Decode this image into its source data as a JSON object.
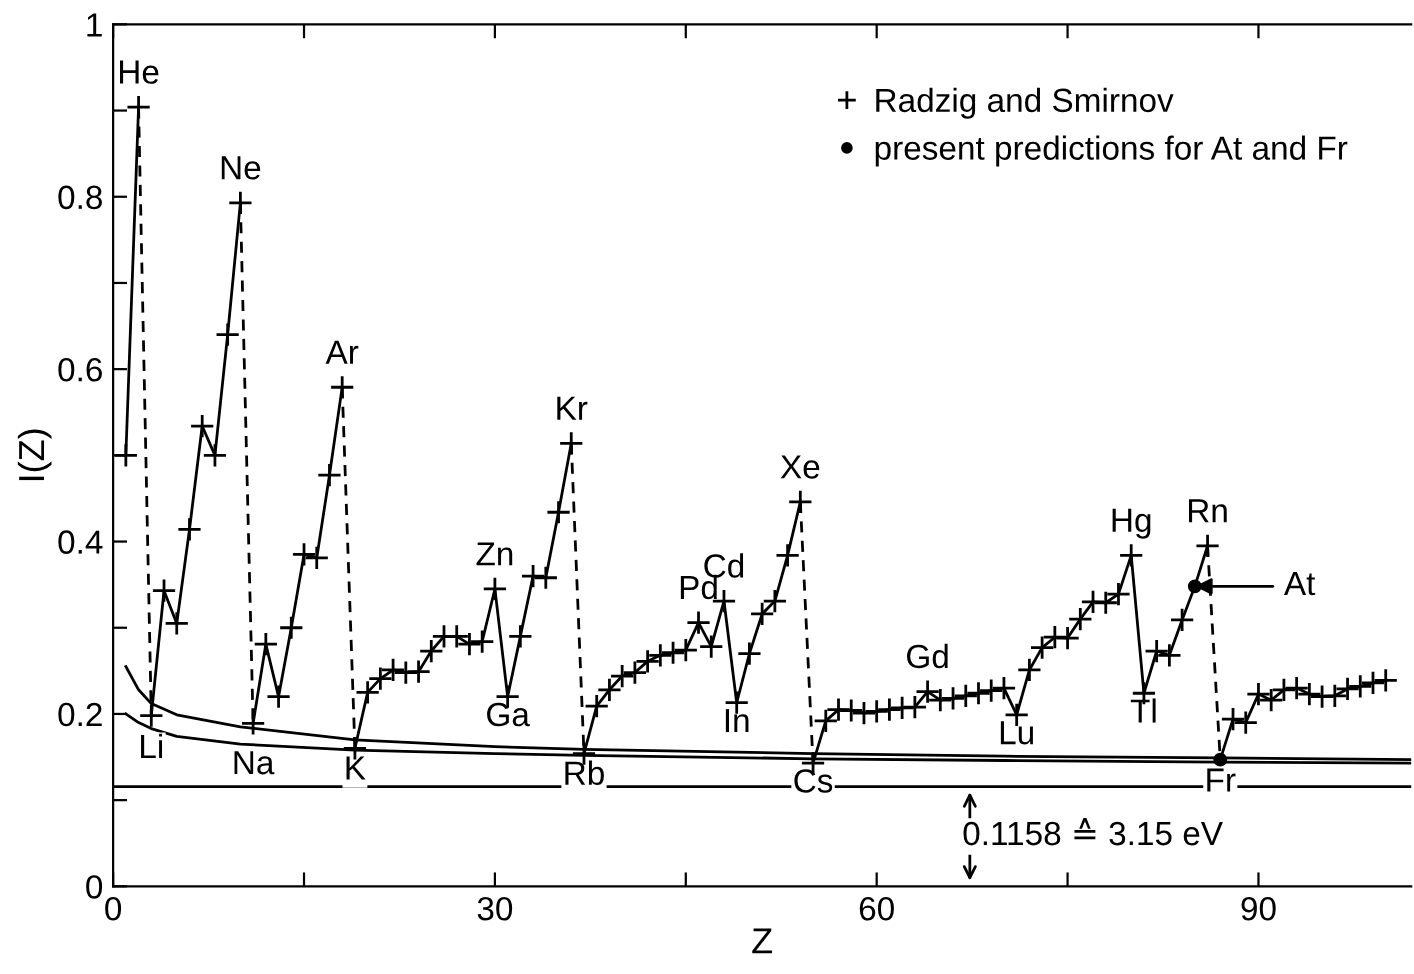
{
  "chart_data": {
    "type": "line",
    "xlabel": "Z",
    "ylabel": "I(Z)",
    "xlim": [
      0,
      102
    ],
    "ylim": [
      0,
      1
    ],
    "xticks": [
      0,
      {
        "value": 15,
        "label": null
      },
      30,
      {
        "value": 45,
        "label": null
      },
      60,
      {
        "value": 75,
        "label": null
      },
      90
    ],
    "yticks": [
      0,
      {
        "value": 0.1,
        "label": null
      },
      0.2,
      {
        "value": 0.3,
        "label": null
      },
      0.4,
      {
        "value": 0.5,
        "label": null
      },
      0.6,
      {
        "value": 0.7,
        "label": null
      },
      0.8,
      {
        "value": 0.9,
        "label": null
      },
      1
    ],
    "grid": false,
    "legend": "top right",
    "series": [
      {
        "name": "Radzig and Smirnov",
        "type": "scatter",
        "marker": "cross",
        "color": "#000000",
        "x": [
          1,
          2,
          3,
          4,
          5,
          6,
          7,
          8,
          9,
          10,
          11,
          12,
          13,
          14,
          15,
          16,
          17,
          18,
          19,
          20,
          21,
          22,
          23,
          24,
          25,
          26,
          27,
          28,
          29,
          30,
          31,
          32,
          33,
          34,
          35,
          36,
          37,
          38,
          39,
          40,
          41,
          42,
          43,
          44,
          45,
          46,
          47,
          48,
          49,
          50,
          51,
          52,
          53,
          54,
          55,
          56,
          57,
          58,
          59,
          60,
          61,
          62,
          63,
          64,
          65,
          66,
          67,
          68,
          69,
          70,
          71,
          72,
          73,
          74,
          75,
          76,
          77,
          78,
          79,
          80,
          81,
          82,
          83,
          84,
          85,
          86,
          87,
          88,
          89,
          90,
          91,
          92,
          93,
          94,
          95,
          96,
          97,
          98,
          99,
          100
        ],
        "values": [
          0.5,
          0.904,
          0.198,
          0.343,
          0.305,
          0.414,
          0.534,
          0.5,
          0.64,
          0.793,
          0.189,
          0.281,
          0.22,
          0.3,
          0.385,
          0.381,
          0.477,
          0.579,
          0.16,
          0.225,
          0.241,
          0.251,
          0.248,
          0.249,
          0.273,
          0.29,
          0.29,
          0.281,
          0.284,
          0.345,
          0.22,
          0.29,
          0.36,
          0.358,
          0.434,
          0.514,
          0.154,
          0.209,
          0.228,
          0.244,
          0.248,
          0.261,
          0.268,
          0.271,
          0.274,
          0.306,
          0.278,
          0.331,
          0.213,
          0.27,
          0.316,
          0.331,
          0.384,
          0.446,
          0.143,
          0.192,
          0.205,
          0.204,
          0.201,
          0.203,
          0.205,
          0.207,
          0.208,
          0.226,
          0.216,
          0.218,
          0.221,
          0.224,
          0.227,
          0.23,
          0.199,
          0.251,
          0.277,
          0.289,
          0.288,
          0.31,
          0.33,
          0.329,
          0.339,
          0.384,
          0.224,
          0.273,
          0.268,
          0.309,
          null,
          0.395,
          null,
          0.194,
          0.19,
          0.223,
          0.216,
          0.228,
          0.23,
          0.223,
          0.22,
          0.221,
          0.229,
          0.232,
          0.236,
          0.239
        ]
      },
      {
        "name": "present predictions for At and Fr",
        "type": "scatter",
        "marker": "circle",
        "color": "#000000",
        "x": [
          85,
          87
        ],
        "values": [
          0.348,
          0.147
        ]
      },
      {
        "type": "line",
        "marker": "none",
        "color": "#000000",
        "x": [
          1,
          2
        ],
        "values": [
          0.5,
          0.904
        ]
      },
      {
        "type": "line",
        "marker": "none",
        "color": "#000000",
        "x": [
          3,
          4,
          5,
          6,
          7,
          8,
          9,
          10
        ],
        "values": [
          0.198,
          0.343,
          0.305,
          0.414,
          0.534,
          0.5,
          0.64,
          0.793
        ]
      },
      {
        "type": "line",
        "marker": "none",
        "color": "#000000",
        "x": [
          11,
          12,
          13,
          14,
          15,
          16,
          17,
          18
        ],
        "values": [
          0.189,
          0.281,
          0.22,
          0.3,
          0.385,
          0.381,
          0.477,
          0.579
        ]
      },
      {
        "type": "line",
        "marker": "none",
        "color": "#000000",
        "x": [
          19,
          20,
          21,
          22,
          23,
          24,
          25,
          26,
          27,
          28,
          29,
          30,
          31,
          32,
          33,
          34,
          35,
          36
        ],
        "values": [
          0.16,
          0.225,
          0.241,
          0.251,
          0.248,
          0.249,
          0.273,
          0.29,
          0.29,
          0.281,
          0.284,
          0.345,
          0.22,
          0.29,
          0.36,
          0.358,
          0.434,
          0.514
        ]
      },
      {
        "type": "line",
        "marker": "none",
        "color": "#000000",
        "x": [
          37,
          38,
          39,
          40,
          41,
          42,
          43,
          44,
          45,
          46,
          47,
          48,
          49,
          50,
          51,
          52,
          53,
          54
        ],
        "values": [
          0.154,
          0.209,
          0.228,
          0.244,
          0.248,
          0.261,
          0.268,
          0.271,
          0.274,
          0.306,
          0.278,
          0.331,
          0.213,
          0.27,
          0.316,
          0.331,
          0.384,
          0.446
        ]
      },
      {
        "type": "line",
        "marker": "none",
        "color": "#000000",
        "x": [
          55,
          56,
          57,
          58,
          59,
          60,
          61,
          62,
          63,
          64,
          65,
          66,
          67,
          68,
          69,
          70,
          71,
          72,
          73,
          74,
          75,
          76,
          77,
          78,
          79,
          80,
          81,
          82,
          83,
          84,
          85,
          86
        ],
        "values": [
          0.143,
          0.192,
          0.205,
          0.204,
          0.201,
          0.203,
          0.205,
          0.207,
          0.208,
          0.226,
          0.216,
          0.218,
          0.221,
          0.224,
          0.227,
          0.23,
          0.199,
          0.251,
          0.277,
          0.289,
          0.288,
          0.31,
          0.33,
          0.329,
          0.339,
          0.384,
          0.224,
          0.273,
          0.268,
          0.309,
          0.348,
          0.395
        ]
      },
      {
        "type": "line",
        "marker": "none",
        "color": "#000000",
        "x": [
          87,
          88,
          89,
          90,
          91,
          92,
          93,
          94,
          95,
          96,
          97,
          98,
          99,
          100
        ],
        "values": [
          0.147,
          0.194,
          0.19,
          0.223,
          0.216,
          0.228,
          0.23,
          0.223,
          0.22,
          0.221,
          0.229,
          0.232,
          0.236,
          0.239
        ]
      },
      {
        "marker": "none",
        "line_style": "dashed",
        "color": "#000000",
        "x": [
          2,
          3
        ],
        "values": [
          0.904,
          0.198
        ]
      },
      {
        "marker": "none",
        "line_style": "dashed",
        "color": "#000000",
        "x": [
          10,
          11
        ],
        "values": [
          0.793,
          0.189
        ]
      },
      {
        "marker": "none",
        "line_style": "dashed",
        "color": "#000000",
        "x": [
          18,
          19
        ],
        "values": [
          0.579,
          0.16
        ]
      },
      {
        "marker": "none",
        "line_style": "dashed",
        "color": "#000000",
        "x": [
          36,
          37
        ],
        "values": [
          0.514,
          0.154
        ]
      },
      {
        "marker": "none",
        "line_style": "dashed",
        "color": "#000000",
        "x": [
          54,
          55
        ],
        "values": [
          0.446,
          0.143
        ]
      },
      {
        "marker": "none",
        "line_style": "dashed",
        "color": "#000000",
        "x": [
          86,
          87
        ],
        "values": [
          0.395,
          0.147
        ]
      },
      {
        "type": "line",
        "marker": "none",
        "color": "#000000",
        "x": [
          1,
          2,
          3,
          5,
          10,
          19,
          30,
          37,
          55,
          70,
          87,
          102
        ],
        "values": [
          0.255,
          0.228,
          0.212,
          0.199,
          0.185,
          0.17,
          0.162,
          0.159,
          0.154,
          0.151,
          0.149,
          0.147
        ]
      },
      {
        "type": "line",
        "marker": "none",
        "color": "#000000",
        "x": [
          1,
          2,
          3,
          5,
          10,
          19,
          30,
          37,
          55,
          70,
          87,
          102
        ],
        "values": [
          0.2,
          0.19,
          0.183,
          0.174,
          0.165,
          0.158,
          0.154,
          0.152,
          0.148,
          0.146,
          0.144,
          0.143
        ]
      }
    ],
    "ref_lines": [
      {
        "axis": "y",
        "value": 0.1158,
        "label": "0.1158 ≙ 3.15 eV",
        "color": "#000000",
        "line_style": "solid"
      }
    ],
    "annotations": [
      {
        "text": "He",
        "x": 2,
        "y": 0.904
      },
      {
        "text": "Ne",
        "x": 10,
        "y": 0.793
      },
      {
        "text": "Ar",
        "x": 18,
        "y": 0.579
      },
      {
        "text": "Kr",
        "x": 36,
        "y": 0.514
      },
      {
        "text": "Xe",
        "x": 54,
        "y": 0.446
      },
      {
        "text": "Rn",
        "x": 86,
        "y": 0.395
      },
      {
        "text": "Zn",
        "x": 30,
        "y": 0.345
      },
      {
        "text": "Ga",
        "x": 31,
        "y": 0.22
      },
      {
        "text": "Pd",
        "x": 46,
        "y": 0.306
      },
      {
        "text": "Cd",
        "x": 48,
        "y": 0.331
      },
      {
        "text": "In",
        "x": 49,
        "y": 0.213
      },
      {
        "text": "Gd",
        "x": 64,
        "y": 0.226
      },
      {
        "text": "Lu",
        "x": 71,
        "y": 0.199
      },
      {
        "text": "Hg",
        "x": 80,
        "y": 0.384
      },
      {
        "text": "Tl",
        "x": 81,
        "y": 0.224
      },
      {
        "text": "At",
        "x": 85,
        "y": 0.348
      },
      {
        "text": "Li",
        "x": 3,
        "y": 0.198
      },
      {
        "text": "Na",
        "x": 11,
        "y": 0.189
      },
      {
        "text": "K",
        "x": 19,
        "y": 0.16
      },
      {
        "text": "Rb",
        "x": 37,
        "y": 0.154
      },
      {
        "text": "Cs",
        "x": 55,
        "y": 0.143
      },
      {
        "text": "Fr",
        "x": 87,
        "y": 0.147
      }
    ]
  }
}
